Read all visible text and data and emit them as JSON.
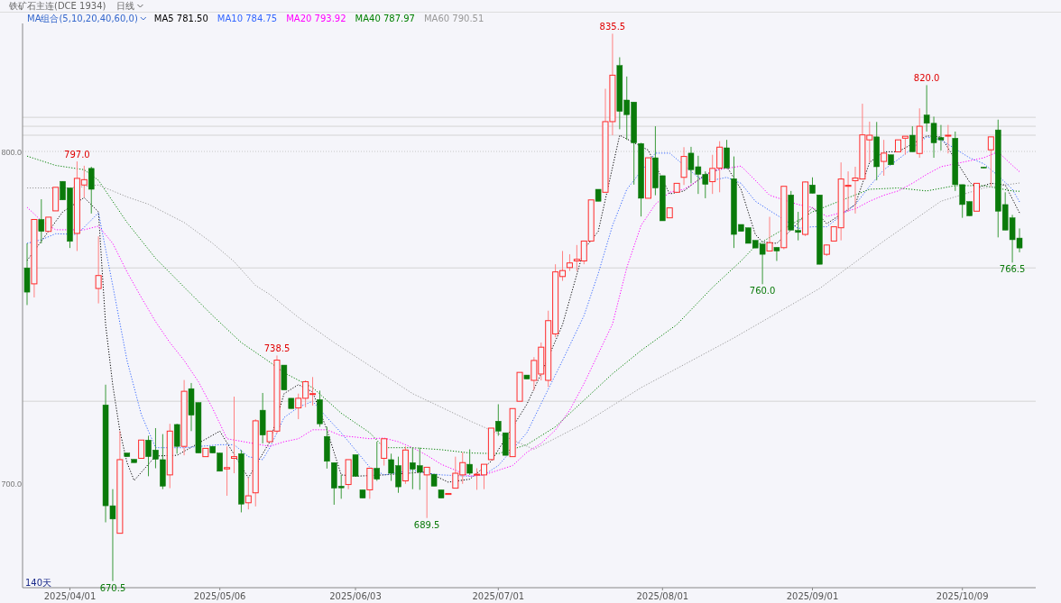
{
  "chart_data": {
    "type": "candlestick",
    "title": "铁矿石主连(DCE 1934)",
    "subtitle": "日线",
    "categories": [
      null,
      null,
      null,
      null,
      null,
      null,
      "2025/04/01",
      null,
      null,
      null,
      null,
      null,
      null,
      null,
      null,
      null,
      null,
      null,
      null,
      null,
      null,
      null,
      null,
      null,
      null,
      null,
      null,
      "2025/05/06",
      null,
      null,
      null,
      null,
      null,
      null,
      null,
      null,
      null,
      null,
      null,
      null,
      null,
      null,
      null,
      null,
      null,
      null,
      "2025/06/03",
      null,
      null,
      null,
      null,
      null,
      null,
      null,
      null,
      null,
      null,
      null,
      null,
      null,
      null,
      null,
      null,
      null,
      null,
      null,
      "2025/07/01",
      null,
      null,
      null,
      null,
      null,
      null,
      null,
      null,
      null,
      null,
      null,
      null,
      null,
      null,
      null,
      null,
      null,
      null,
      null,
      null,
      null,
      null,
      "2025/08/01",
      null,
      null,
      null,
      null,
      null,
      null,
      null,
      null,
      null,
      null,
      null,
      null,
      null,
      null,
      null,
      null,
      null,
      null,
      null,
      null,
      "2025/09/01",
      null,
      null,
      null,
      null,
      null,
      null,
      null,
      null,
      null,
      null,
      null,
      null,
      null,
      null,
      null,
      null,
      null,
      null,
      null,
      null,
      "2025/10/09",
      null,
      null,
      null,
      null,
      null,
      null,
      null,
      null
    ],
    "ohlc": [
      [
        764.9,
        772.3,
        753.7,
        757.6
      ],
      [
        760.1,
        779.5,
        756.0,
        779.5
      ],
      [
        779.5,
        785.6,
        772.3,
        775.9
      ],
      [
        775.9,
        780.2,
        775.9,
        780.2
      ],
      [
        782.1,
        789.2,
        782.1,
        789.2
      ],
      [
        791.0,
        791.0,
        785.4,
        785.4
      ],
      [
        789.0,
        789.0,
        770.9,
        772.9
      ],
      [
        775.3,
        797.0,
        770.0,
        791.9
      ],
      [
        789.9,
        795.7,
        786.1,
        791.5
      ],
      [
        794.9,
        795.4,
        781.3,
        788.6
      ],
      [
        758.7,
        774.4,
        754.2,
        762.6
      ],
      [
        723.6,
        729.7,
        688.2,
        693.2
      ],
      [
        693.2,
        698.2,
        670.5,
        689.2
      ],
      [
        684.9,
        715.7,
        684.9,
        707.1
      ],
      [
        709.1,
        709.1,
        708.0,
        708.0
      ],
      [
        707.2,
        707.2,
        706.2,
        706.2
      ],
      [
        707.5,
        713.0,
        707.5,
        713.0
      ],
      [
        713.0,
        714.3,
        702.1,
        708.0
      ],
      [
        710.0,
        716.6,
        704.5,
        707.2
      ],
      [
        707.1,
        714.8,
        698.2,
        699.1
      ],
      [
        702.5,
        717.9,
        698.5,
        715.7
      ],
      [
        717.7,
        717.9,
        708.9,
        711.1
      ],
      [
        711.1,
        731.1,
        708.4,
        727.7
      ],
      [
        728.5,
        730.2,
        715.7,
        720.5
      ],
      [
        724.3,
        724.3,
        709.1,
        709.1
      ],
      [
        708.0,
        710.5,
        708.0,
        710.5
      ],
      [
        711.1,
        711.1,
        709.1,
        709.1
      ],
      [
        709.1,
        709.1,
        703.6,
        703.6
      ],
      [
        704.3,
        711.1,
        696.2,
        704.7
      ],
      [
        707.5,
        726.1,
        703.0,
        708.0
      ],
      [
        708.9,
        710.0,
        691.2,
        693.7
      ],
      [
        694.1,
        701.6,
        692.1,
        696.2
      ],
      [
        697.1,
        719.3,
        693.0,
        718.8
      ],
      [
        722.0,
        727.2,
        712.0,
        714.5
      ],
      [
        712.5,
        715.7,
        712.5,
        715.7
      ],
      [
        715.7,
        738.5,
        715.0,
        737.1
      ],
      [
        735.6,
        735.6,
        728.1,
        728.1
      ],
      [
        725.6,
        725.6,
        722.5,
        722.5
      ],
      [
        722.7,
        727.0,
        719.3,
        725.6
      ],
      [
        725.6,
        731.0,
        722.9,
        730.6
      ],
      [
        727.0,
        732.0,
        723.4,
        727.0
      ],
      [
        725.2,
        727.9,
        717.0,
        717.9
      ],
      [
        714.1,
        717.0,
        704.4,
        706.6
      ],
      [
        706.2,
        706.2,
        693.5,
        698.5
      ],
      [
        699.1,
        702.5,
        695.3,
        698.6
      ],
      [
        699.6,
        707.1,
        698.2,
        707.1
      ],
      [
        708.6,
        708.6,
        702.1,
        702.1
      ],
      [
        698.0,
        698.0,
        695.5,
        695.5
      ],
      [
        698.0,
        704.5,
        695.3,
        704.5
      ],
      [
        704.5,
        712.5,
        700.7,
        701.2
      ],
      [
        707.5,
        713.4,
        705.3,
        713.4
      ],
      [
        707.1,
        708.9,
        700.7,
        703.0
      ],
      [
        705.3,
        708.0,
        697.1,
        698.9
      ],
      [
        700.7,
        711.1,
        699.8,
        710.0
      ],
      [
        706.2,
        710.7,
        698.2,
        704.2
      ],
      [
        705.3,
        710.7,
        698.0,
        703.3
      ],
      [
        702.5,
        704.8,
        689.5,
        704.8
      ],
      [
        702.7,
        702.7,
        699.1,
        699.1
      ],
      [
        698.0,
        698.0,
        695.5,
        695.5
      ],
      [
        696.6,
        696.9,
        696.6,
        696.9
      ],
      [
        698.5,
        708.0,
        698.5,
        703.0
      ],
      [
        702.5,
        709.3,
        699.8,
        706.2
      ],
      [
        705.7,
        710.2,
        702.5,
        703.0
      ],
      [
        702.5,
        704.5,
        698.0,
        702.7
      ],
      [
        702.5,
        705.7,
        698.2,
        705.7
      ],
      [
        707.1,
        716.6,
        707.1,
        716.6
      ],
      [
        718.7,
        723.8,
        714.3,
        715.7
      ],
      [
        715.2,
        715.2,
        708.4,
        708.4
      ],
      [
        708.0,
        722.5,
        708.0,
        722.5
      ],
      [
        724.7,
        733.4,
        724.7,
        733.4
      ],
      [
        732.6,
        732.6,
        731.4,
        731.4
      ],
      [
        731.0,
        738.0,
        728.0,
        737.0
      ],
      [
        732.9,
        742.4,
        731.0,
        741.0
      ],
      [
        731.0,
        752.0,
        729.0,
        749.0
      ],
      [
        745.0,
        766.0,
        744.0,
        763.7
      ],
      [
        762.3,
        770.0,
        761.0,
        764.1
      ],
      [
        765.0,
        769.0,
        764.0,
        766.4
      ],
      [
        767.0,
        771.8,
        764.0,
        767.5
      ],
      [
        767.0,
        773.0,
        766.0,
        773.0
      ],
      [
        773.0,
        785.4,
        773.0,
        785.4
      ],
      [
        788.6,
        788.6,
        785.0,
        785.0
      ],
      [
        787.7,
        818.9,
        787.7,
        809.0
      ],
      [
        809.0,
        835.5,
        804.9,
        823.0
      ],
      [
        825.9,
        828.4,
        806.7,
        812.1
      ],
      [
        815.5,
        822.6,
        803.5,
        811.1
      ],
      [
        814.9,
        814.9,
        790.0,
        802.6
      ],
      [
        802.4,
        802.6,
        780.4,
        785.9
      ],
      [
        785.9,
        798.1,
        785.9,
        798.1
      ],
      [
        798.1,
        807.6,
        786.8,
        789.0
      ],
      [
        792.7,
        792.7,
        779.1,
        779.1
      ],
      [
        780.0,
        783.0,
        780.0,
        783.0
      ],
      [
        787.7,
        790.4,
        787.7,
        790.4
      ],
      [
        792.2,
        801.3,
        789.9,
        798.5
      ],
      [
        799.5,
        801.4,
        790.4,
        794.5
      ],
      [
        795.4,
        798.7,
        787.2,
        793.1
      ],
      [
        793.1,
        794.0,
        785.9,
        790.1
      ],
      [
        790.9,
        799.0,
        787.2,
        794.9
      ],
      [
        795.0,
        803.1,
        787.7,
        801.3
      ],
      [
        801.1,
        803.5,
        795.0,
        795.0
      ],
      [
        791.8,
        798.5,
        770.9,
        775.0
      ],
      [
        778.0,
        778.0,
        775.9,
        775.9
      ],
      [
        777.0,
        777.0,
        772.3,
        772.3
      ],
      [
        773.2,
        773.2,
        770.9,
        770.9
      ],
      [
        772.1,
        772.1,
        760.0,
        769.0
      ],
      [
        770.0,
        780.3,
        770.0,
        772.5
      ],
      [
        771.1,
        771.1,
        767.0,
        770.0
      ],
      [
        771.0,
        789.5,
        770.5,
        789.5
      ],
      [
        786.9,
        788.1,
        776.3,
        776.3
      ],
      [
        776.2,
        781.8,
        773.2,
        775.6
      ],
      [
        775.0,
        791.0,
        774.5,
        790.8
      ],
      [
        789.9,
        792.2,
        787.4,
        787.4
      ],
      [
        786.9,
        786.9,
        766.0,
        766.0
      ],
      [
        769.0,
        772.0,
        768.5,
        771.8
      ],
      [
        773.0,
        777.3,
        773.0,
        777.3
      ],
      [
        777.0,
        796.7,
        773.2,
        791.7
      ],
      [
        789.5,
        794.0,
        781.8,
        789.8
      ],
      [
        791.2,
        795.4,
        781.3,
        792.0
      ],
      [
        791.7,
        814.4,
        791.7,
        805.0
      ],
      [
        803.5,
        809.0,
        796.7,
        804.9
      ],
      [
        804.4,
        808.9,
        791.3,
        795.4
      ],
      [
        797.0,
        803.5,
        792.7,
        799.5
      ],
      [
        799.0,
        799.0,
        796.0,
        796.0
      ],
      [
        799.9,
        803.5,
        799.9,
        803.5
      ],
      [
        804.0,
        804.6,
        799.0,
        804.6
      ],
      [
        804.9,
        807.6,
        799.9,
        799.9
      ],
      [
        799.4,
        813.0,
        798.1,
        807.6
      ],
      [
        811.0,
        820.0,
        806.0,
        808.5
      ],
      [
        808.5,
        810.5,
        798.1,
        802.6
      ],
      [
        804.2,
        808.0,
        800.3,
        803.5
      ],
      [
        804.9,
        808.0,
        799.4,
        804.9
      ],
      [
        804.0,
        806.0,
        788.1,
        790.0
      ],
      [
        790.0,
        790.0,
        780.0,
        784.0
      ],
      [
        784.9,
        784.9,
        780.6,
        780.6
      ],
      [
        782.0,
        790.4,
        782.0,
        790.4
      ],
      [
        795.3,
        795.3,
        795.0,
        795.0
      ],
      [
        800.5,
        804.4,
        789.5,
        804.4
      ],
      [
        806.5,
        809.6,
        774.1,
        782.0
      ],
      [
        784.0,
        787.7,
        776.3,
        776.3
      ],
      [
        780.0,
        780.9,
        766.5,
        773.4
      ],
      [
        773.9,
        776.8,
        769.6,
        770.9
      ]
    ],
    "ylim": [
      668.5,
      838.6
    ],
    "yticks": [
      {
        "value": 700,
        "label": "700.0"
      },
      {
        "value": 800,
        "label": "800.0"
      }
    ],
    "line_style": "dotted",
    "series": [
      {
        "name": "MA5 781.50",
        "type": "line",
        "color": "#000000",
        "values": [
          767.1,
          null,
          null,
          null,
          null,
          781.8,
          null,
          null,
          786.1,
          null,
          781.8,
          747.8,
          729.6,
          715.7,
          706.2,
          700.8,
          null,
          null,
          708.2,
          null,
          null,
          708.4,
          null,
          null,
          null,
          null,
          null,
          715.7,
          null,
          null,
          null,
          701.6,
          null,
          null,
          712.5,
          null,
          727.0,
          null,
          729.7,
          null,
          727.5,
          null,
          716.1,
          null,
          702.5,
          null,
          702.1,
          null,
          null,
          null,
          702.5,
          null,
          null,
          null,
          null,
          null,
          703.4,
          null,
          null,
          700.3,
          null,
          null,
          701.2,
          null,
          null,
          706.6,
          null,
          null,
          null,
          null,
          723.8,
          null,
          733.0,
          null,
          null,
          747.8,
          null,
          null,
          770.5,
          null,
          775.9,
          null,
          null,
          804.9,
          null,
          null,
          null,
          800.4,
          null,
          null,
          787.2,
          null,
          788.1,
          null,
          null,
          793.1,
          null,
          null,
          795.4,
          null,
          788.6,
          null,
          775.0,
          772.7,
          null,
          772.3,
          null,
          776.3,
          null,
          null,
          783.1,
          null,
          778.2,
          null,
          null,
          null,
          784.0,
          null,
          796.7,
          null,
          799.9,
          null,
          799.9,
          null,
          null,
          null,
          804.7,
          null,
          804.4,
          null,
          null,
          null,
          790.8,
          789.0,
          null,
          790.4,
          null,
          789.9,
          null,
          781.5
        ]
      },
      {
        "name": "MA10 784.75",
        "type": "line",
        "color": "#3366ff",
        "values": [
          772.3,
          null,
          773.4,
          null,
          775.2,
          null,
          null,
          775.0,
          null,
          null,
          781.5,
          null,
          759.6,
          null,
          737.0,
          null,
          720.7,
          null,
          710.7,
          null,
          null,
          null,
          710.7,
          null,
          null,
          null,
          null,
          711.6,
          null,
          711.6,
          null,
          708.0,
          null,
          707.1,
          710.7,
          null,
          719.8,
          null,
          722.9,
          null,
          724.7,
          null,
          719.8,
          null,
          715.2,
          null,
          null,
          null,
          704.8,
          null,
          702.5,
          null,
          null,
          null,
          703.9,
          null,
          703.0,
          null,
          702.5,
          null,
          null,
          null,
          702.1,
          null,
          702.5,
          null,
          705.3,
          null,
          null,
          null,
          715.2,
          null,
          724.0,
          null,
          null,
          737.0,
          null,
          null,
          750.5,
          null,
          763.2,
          null,
          777.7,
          null,
          788.6,
          null,
          null,
          null,
          799.5,
          null,
          799.5,
          null,
          null,
          null,
          792.2,
          null,
          791.3,
          null,
          792.2,
          null,
          790.4,
          null,
          785.0,
          null,
          782.2,
          null,
          null,
          null,
          776.8,
          null,
          777.3,
          null,
          777.3,
          null,
          null,
          null,
          784.0,
          null,
          789.5,
          null,
          794.5,
          null,
          797.6,
          null,
          null,
          null,
          804.4,
          null,
          803.5,
          null,
          null,
          null,
          798.1,
          null,
          796.3,
          null,
          792.7,
          null,
          788.6,
          784.8
        ]
      },
      {
        "name": "MA20 793.92",
        "type": "line",
        "color": "#ff00ff",
        "values": [
          783.2,
          null,
          779.1,
          null,
          776.4,
          null,
          null,
          null,
          776.4,
          null,
          777.5,
          null,
          772.3,
          null,
          763.7,
          null,
          756.0,
          null,
          748.7,
          null,
          742.4,
          null,
          737.0,
          null,
          730.6,
          null,
          722.5,
          null,
          713.4,
          null,
          null,
          null,
          null,
          null,
          711.1,
          null,
          712.5,
          null,
          713.4,
          null,
          716.1,
          null,
          716.1,
          null,
          714.3,
          null,
          713.9,
          null,
          713.4,
          null,
          713.6,
          null,
          712.5,
          null,
          710.7,
          null,
          708.4,
          null,
          705.7,
          null,
          null,
          null,
          702.1,
          null,
          702.5,
          null,
          703.9,
          null,
          705.3,
          null,
          709.3,
          null,
          712.0,
          null,
          716.0,
          null,
          722.0,
          null,
          730.0,
          null,
          739.0,
          null,
          748.0,
          null,
          765.0,
          null,
          777.7,
          null,
          784.1,
          null,
          787.7,
          null,
          788.6,
          null,
          791.3,
          null,
          794.2,
          null,
          null,
          null,
          795.6,
          null,
          791.3,
          null,
          786.8,
          null,
          null,
          null,
          784.0,
          null,
          783.1,
          null,
          780.4,
          null,
          null,
          null,
          782.7,
          null,
          785.0,
          null,
          786.8,
          null,
          788.1,
          null,
          790.4,
          null,
          793.1,
          null,
          795.4,
          null,
          null,
          null,
          797.2,
          null,
          798.1,
          null,
          799.9,
          null,
          795.8,
          793.9
        ]
      },
      {
        "name": "MA40 787.97",
        "type": "line",
        "color": "#008000",
        "values": [
          798.6,
          null,
          null,
          null,
          795.8,
          null,
          null,
          null,
          794.5,
          null,
          791.3,
          null,
          null,
          null,
          778.6,
          null,
          null,
          null,
          767.8,
          null,
          null,
          null,
          759.1,
          null,
          null,
          null,
          750.5,
          null,
          null,
          null,
          742.4,
          null,
          null,
          null,
          736.5,
          null,
          733.3,
          null,
          null,
          null,
          728.8,
          null,
          null,
          null,
          721.1,
          null,
          null,
          null,
          715.2,
          null,
          710.7,
          null,
          null,
          null,
          710.7,
          null,
          null,
          null,
          710.1,
          null,
          null,
          null,
          709.1,
          null,
          null,
          null,
          708.9,
          null,
          null,
          null,
          711.6,
          null,
          null,
          null,
          717.0,
          null,
          null,
          null,
          725.0,
          null,
          null,
          null,
          733.0,
          null,
          null,
          null,
          740.0,
          null,
          null,
          null,
          null,
          747.8,
          null,
          null,
          null,
          null,
          759.0,
          null,
          null,
          null,
          767.0,
          null,
          771.5,
          null,
          null,
          null,
          null,
          null,
          null,
          null,
          781.8,
          null,
          null,
          null,
          null,
          null,
          null,
          null,
          788.6,
          null,
          null,
          null,
          789.0,
          null,
          null,
          null,
          788.1,
          null,
          null,
          null,
          789.7,
          null,
          null,
          null,
          789.7,
          null,
          null,
          null,
          788.1,
          788.0
        ]
      },
      {
        "name": "MA60 790.51",
        "type": "line",
        "color": "#999999",
        "values": [
          789.0,
          null,
          null,
          null,
          null,
          null,
          789.0,
          null,
          null,
          null,
          789.9,
          null,
          null,
          null,
          786.3,
          null,
          null,
          784.1,
          null,
          null,
          null,
          null,
          778.6,
          null,
          null,
          null,
          772.3,
          null,
          null,
          766.8,
          null,
          null,
          759.6,
          null,
          756.9,
          null,
          null,
          null,
          750.0,
          null,
          null,
          null,
          null,
          742.4,
          null,
          null,
          null,
          null,
          null,
          null,
          null,
          null,
          null,
          null,
          727.0,
          null,
          null,
          null,
          null,
          null,
          null,
          null,
          718.8,
          null,
          null,
          null,
          null,
          null,
          null,
          null,
          null,
          710.2,
          null,
          null,
          null,
          null,
          null,
          null,
          718.0,
          null,
          null,
          null,
          null,
          null,
          null,
          null,
          728.8,
          null,
          null,
          null,
          null,
          null,
          null,
          null,
          null,
          null,
          null,
          null,
          null,
          743.8,
          null,
          null,
          null,
          null,
          null,
          null,
          null,
          null,
          null,
          null,
          null,
          758.7,
          null,
          null,
          null,
          null,
          null,
          null,
          null,
          null,
          773.0,
          null,
          null,
          null,
          null,
          null,
          null,
          null,
          785.0,
          null,
          null,
          null,
          null,
          null,
          789.0,
          null,
          null,
          null,
          null,
          790.5
        ]
      }
    ],
    "ref_lines": [
      {
        "axis": "y",
        "value": 810.3,
        "color": "#d4d4d4"
      },
      {
        "axis": "y",
        "value": 807.6,
        "color": "#d4d4d4"
      },
      {
        "axis": "y",
        "value": 804.9,
        "color": "#d4d4d4"
      },
      {
        "axis": "y",
        "value": 800,
        "color": "#c8c8c8",
        "line_style": "dotted"
      },
      {
        "axis": "y",
        "value": 764.9,
        "color": "#d4d4d4"
      },
      {
        "axis": "y",
        "value": 724.7,
        "color": "#d4d4d4"
      }
    ],
    "annotations": [
      "MA组合(5,10,20,40,60,0)",
      "140天",
      {
        "text": "797.0",
        "y": 797.0
      },
      {
        "text": "670.5",
        "y": 670.5
      },
      {
        "text": "738.5",
        "y": 738.5
      },
      {
        "text": "689.5",
        "y": 689.5
      },
      {
        "text": "835.5",
        "y": 835.5
      },
      {
        "text": "760.0",
        "y": 760.0
      },
      {
        "text": "820.0",
        "y": 820.0
      },
      {
        "text": "766.5",
        "y": 766.5
      }
    ]
  }
}
